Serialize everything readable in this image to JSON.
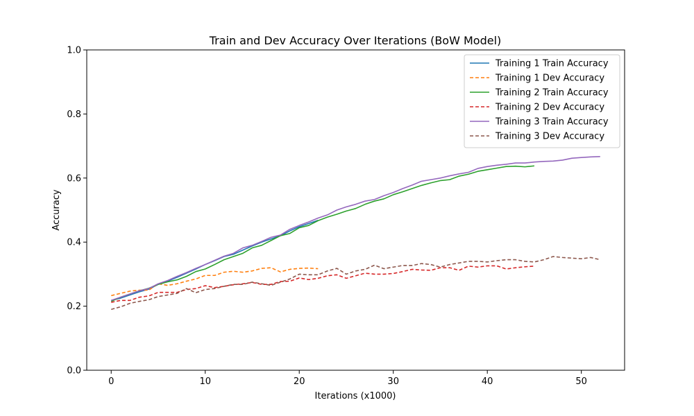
{
  "chart_data": {
    "type": "line",
    "title": "Train and Dev Accuracy Over Iterations (BoW Model)",
    "xlabel": "Iterations (x1000)",
    "ylabel": "Accuracy",
    "xlim": [
      -2.6,
      54.6
    ],
    "ylim": [
      0,
      1.0
    ],
    "xticks": [
      0,
      10,
      20,
      30,
      40,
      50
    ],
    "yticks": [
      0.0,
      0.2,
      0.4,
      0.6,
      0.8,
      1.0
    ],
    "legend_position": "top-right",
    "grid": false,
    "series": [
      {
        "name": "Training 1 Train Accuracy",
        "color": "#1f77b4",
        "style": "solid",
        "x": [
          0,
          1,
          2,
          3,
          4,
          5,
          6,
          7,
          8,
          9,
          10,
          11,
          12,
          13,
          14,
          15,
          16,
          17,
          18,
          19,
          20,
          21,
          22
        ],
        "y": [
          0.218,
          0.225,
          0.235,
          0.245,
          0.253,
          0.268,
          0.278,
          0.29,
          0.303,
          0.316,
          0.33,
          0.342,
          0.355,
          0.362,
          0.375,
          0.388,
          0.4,
          0.41,
          0.42,
          0.435,
          0.448,
          0.458,
          0.468
        ]
      },
      {
        "name": "Training 1 Dev Accuracy",
        "color": "#ff7f0e",
        "style": "dashed",
        "x": [
          0,
          1,
          2,
          3,
          4,
          5,
          6,
          7,
          8,
          9,
          10,
          11,
          12,
          13,
          14,
          15,
          16,
          17,
          18,
          19,
          20,
          21,
          22
        ],
        "y": [
          0.233,
          0.24,
          0.247,
          0.25,
          0.25,
          0.27,
          0.265,
          0.27,
          0.278,
          0.285,
          0.296,
          0.296,
          0.306,
          0.309,
          0.306,
          0.31,
          0.318,
          0.32,
          0.307,
          0.315,
          0.318,
          0.319,
          0.317
        ]
      },
      {
        "name": "Training 2 Train Accuracy",
        "color": "#2ca02c",
        "style": "solid",
        "x": [
          0,
          1,
          2,
          3,
          4,
          5,
          6,
          7,
          8,
          9,
          10,
          11,
          12,
          13,
          14,
          15,
          16,
          17,
          18,
          19,
          20,
          21,
          22,
          23,
          24,
          25,
          26,
          27,
          28,
          29,
          30,
          31,
          32,
          33,
          34,
          35,
          36,
          37,
          38,
          39,
          40,
          41,
          42,
          43,
          44,
          45
        ],
        "y": [
          0.215,
          0.228,
          0.238,
          0.248,
          0.256,
          0.268,
          0.276,
          0.282,
          0.293,
          0.308,
          0.316,
          0.33,
          0.345,
          0.355,
          0.365,
          0.382,
          0.39,
          0.405,
          0.42,
          0.427,
          0.445,
          0.452,
          0.467,
          0.478,
          0.487,
          0.497,
          0.505,
          0.518,
          0.528,
          0.535,
          0.548,
          0.557,
          0.567,
          0.577,
          0.585,
          0.592,
          0.595,
          0.606,
          0.612,
          0.621,
          0.626,
          0.631,
          0.636,
          0.637,
          0.635,
          0.638
        ]
      },
      {
        "name": "Training 2 Dev Accuracy",
        "color": "#d62728",
        "style": "dashed",
        "x": [
          0,
          1,
          2,
          3,
          4,
          5,
          6,
          7,
          8,
          9,
          10,
          11,
          12,
          13,
          14,
          15,
          16,
          17,
          18,
          19,
          20,
          21,
          22,
          23,
          24,
          25,
          26,
          27,
          28,
          29,
          30,
          31,
          32,
          33,
          34,
          35,
          36,
          37,
          38,
          39,
          40,
          41,
          42,
          43,
          44,
          45
        ],
        "y": [
          0.212,
          0.218,
          0.218,
          0.228,
          0.232,
          0.243,
          0.243,
          0.243,
          0.252,
          0.255,
          0.264,
          0.258,
          0.262,
          0.267,
          0.27,
          0.274,
          0.268,
          0.268,
          0.277,
          0.278,
          0.288,
          0.283,
          0.287,
          0.295,
          0.298,
          0.287,
          0.295,
          0.303,
          0.3,
          0.3,
          0.302,
          0.308,
          0.315,
          0.313,
          0.312,
          0.32,
          0.32,
          0.312,
          0.325,
          0.322,
          0.326,
          0.326,
          0.316,
          0.32,
          0.323,
          0.325
        ]
      },
      {
        "name": "Training 3 Train Accuracy",
        "color": "#9467bd",
        "style": "solid",
        "x": [
          0,
          1,
          2,
          3,
          4,
          5,
          6,
          7,
          8,
          9,
          10,
          11,
          12,
          13,
          14,
          15,
          16,
          17,
          18,
          19,
          20,
          21,
          22,
          23,
          24,
          25,
          26,
          27,
          28,
          29,
          30,
          31,
          32,
          33,
          34,
          35,
          36,
          37,
          38,
          39,
          40,
          41,
          42,
          43,
          44,
          45,
          46,
          47,
          48,
          49,
          50,
          51,
          52
        ],
        "y": [
          0.218,
          0.228,
          0.238,
          0.248,
          0.255,
          0.27,
          0.28,
          0.293,
          0.305,
          0.318,
          0.33,
          0.343,
          0.356,
          0.365,
          0.382,
          0.39,
          0.402,
          0.415,
          0.422,
          0.44,
          0.452,
          0.463,
          0.475,
          0.485,
          0.5,
          0.51,
          0.518,
          0.528,
          0.533,
          0.545,
          0.555,
          0.567,
          0.578,
          0.59,
          0.595,
          0.6,
          0.607,
          0.613,
          0.618,
          0.63,
          0.636,
          0.64,
          0.643,
          0.647,
          0.647,
          0.65,
          0.652,
          0.653,
          0.656,
          0.662,
          0.664,
          0.666,
          0.667
        ]
      },
      {
        "name": "Training 3 Dev Accuracy",
        "color": "#8c564b",
        "style": "dashed",
        "x": [
          0,
          1,
          2,
          3,
          4,
          5,
          6,
          7,
          8,
          9,
          10,
          11,
          12,
          13,
          14,
          15,
          16,
          17,
          18,
          19,
          20,
          21,
          22,
          23,
          24,
          25,
          26,
          27,
          28,
          29,
          30,
          31,
          32,
          33,
          34,
          35,
          36,
          37,
          38,
          39,
          40,
          41,
          42,
          43,
          44,
          45,
          46,
          47,
          48,
          49,
          50,
          51,
          52
        ],
        "y": [
          0.19,
          0.198,
          0.209,
          0.215,
          0.22,
          0.23,
          0.235,
          0.24,
          0.255,
          0.242,
          0.252,
          0.255,
          0.262,
          0.268,
          0.268,
          0.275,
          0.27,
          0.265,
          0.275,
          0.285,
          0.3,
          0.298,
          0.298,
          0.31,
          0.318,
          0.3,
          0.31,
          0.315,
          0.328,
          0.317,
          0.322,
          0.327,
          0.327,
          0.333,
          0.33,
          0.322,
          0.33,
          0.335,
          0.34,
          0.34,
          0.338,
          0.342,
          0.345,
          0.345,
          0.34,
          0.338,
          0.345,
          0.355,
          0.352,
          0.35,
          0.348,
          0.352,
          0.345
        ]
      }
    ]
  }
}
